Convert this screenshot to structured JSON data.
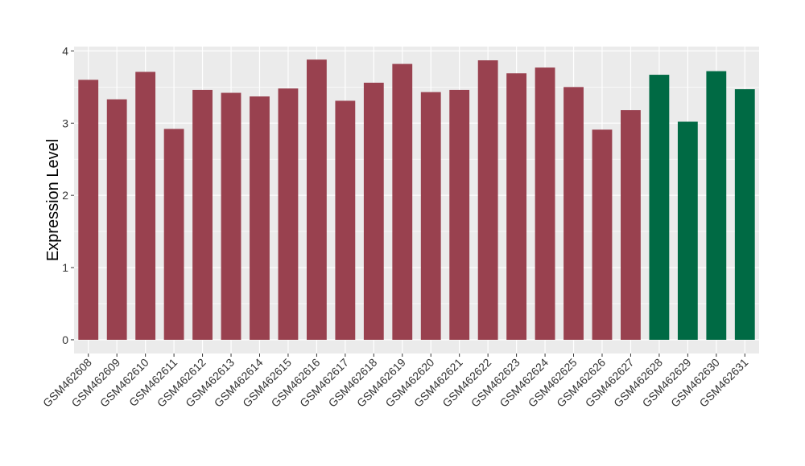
{
  "chart_data": {
    "type": "bar",
    "y_label": "Expression Level",
    "categories": [
      "GSM462608",
      "GSM462609",
      "GSM462610",
      "GSM462611",
      "GSM462612",
      "GSM462613",
      "GSM462614",
      "GSM462615",
      "GSM462616",
      "GSM462617",
      "GSM462618",
      "GSM462619",
      "GSM462620",
      "GSM462621",
      "GSM462622",
      "GSM462623",
      "GSM462624",
      "GSM462625",
      "GSM462626",
      "GSM462627",
      "GSM462628",
      "GSM462629",
      "GSM462630",
      "GSM462631"
    ],
    "values": [
      3.6,
      3.33,
      3.71,
      2.92,
      3.46,
      3.42,
      3.37,
      3.48,
      3.88,
      3.31,
      3.56,
      3.82,
      3.43,
      3.46,
      3.87,
      3.69,
      3.77,
      3.5,
      2.91,
      3.18,
      3.67,
      3.02,
      3.72,
      3.47
    ],
    "colors": [
      "#99414f",
      "#99414f",
      "#99414f",
      "#99414f",
      "#99414f",
      "#99414f",
      "#99414f",
      "#99414f",
      "#99414f",
      "#99414f",
      "#99414f",
      "#99414f",
      "#99414f",
      "#99414f",
      "#99414f",
      "#99414f",
      "#99414f",
      "#99414f",
      "#99414f",
      "#99414f",
      "#006a44",
      "#006a44",
      "#006a44",
      "#006a44"
    ],
    "ylim": [
      -0.19,
      4.06
    ],
    "yticks": [
      0,
      1,
      2,
      3,
      4
    ],
    "grid": true
  }
}
